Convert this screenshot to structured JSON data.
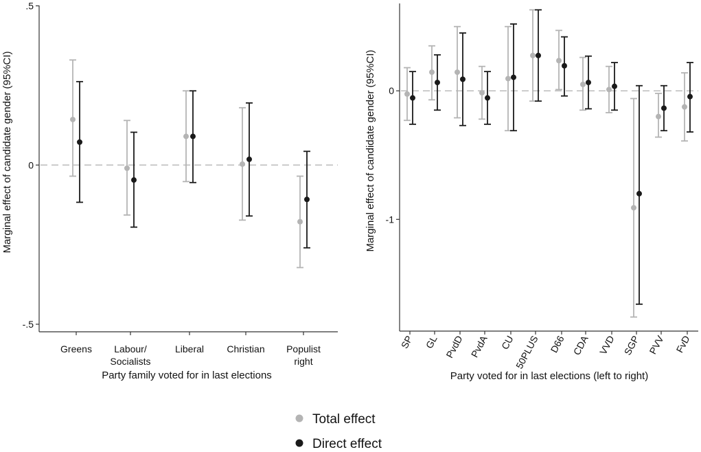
{
  "colors": {
    "total": "#b4b4b4",
    "direct": "#1a1a1a",
    "axis": "#333333",
    "zero_line": "#bbbbbb"
  },
  "legend": {
    "items": [
      {
        "key": "total",
        "label": "Total effect"
      },
      {
        "key": "direct",
        "label": "Direct effect"
      }
    ]
  },
  "chart_data": [
    {
      "type": "scatter",
      "panel": "left",
      "title": "",
      "ylabel": "Marginal effect of candidate gender (95%CI)",
      "xlabel": "Party family voted for in last elections",
      "ylim": [
        -0.5,
        0.5
      ],
      "yticks": [
        {
          "value": 0.5,
          "label": ".5"
        },
        {
          "value": 0,
          "label": "0"
        },
        {
          "value": -0.5,
          "label": "-.5"
        }
      ],
      "zero_line": true,
      "categories": [
        "Greens",
        "Labour/\nSocialists",
        "Liberal",
        "Christian",
        "Populist\nright"
      ],
      "series": [
        {
          "name": "Total effect",
          "key": "total",
          "values": [
            0.143,
            -0.01,
            0.09,
            0.003,
            -0.178
          ],
          "lower": [
            -0.035,
            -0.157,
            -0.052,
            -0.173,
            -0.322
          ],
          "upper": [
            0.33,
            0.14,
            0.233,
            0.18,
            -0.035
          ]
        },
        {
          "name": "Direct effect",
          "key": "direct",
          "values": [
            0.072,
            -0.047,
            0.09,
            0.018,
            -0.108
          ],
          "lower": [
            -0.117,
            -0.195,
            -0.055,
            -0.16,
            -0.26
          ],
          "upper": [
            0.262,
            0.103,
            0.233,
            0.195,
            0.043
          ]
        }
      ]
    },
    {
      "type": "scatter",
      "panel": "right",
      "title": "",
      "ylabel": "Marginal effect of candidate gender (95%CI)",
      "xlabel": "Party voted for in last elections (left to right)",
      "ylim": [
        -1.8,
        0.68
      ],
      "yticks": [
        {
          "value": 0,
          "label": "0"
        },
        {
          "value": -1,
          "label": "-1"
        }
      ],
      "zero_line": true,
      "categories": [
        "SP",
        "GL",
        "PvdD",
        "PvdA",
        "CU",
        "50PLUS",
        "D66",
        "CDA",
        "VVD",
        "SGP",
        "PVV",
        "FvD"
      ],
      "series": [
        {
          "name": "Total effect",
          "key": "total",
          "values": [
            -0.025,
            0.145,
            0.145,
            -0.015,
            0.095,
            0.275,
            0.235,
            0.05,
            0.01,
            -0.91,
            -0.2,
            -0.125
          ],
          "lower": [
            -0.23,
            -0.07,
            -0.21,
            -0.22,
            -0.31,
            -0.08,
            0.01,
            -0.15,
            -0.17,
            -1.76,
            -0.36,
            -0.39
          ],
          "upper": [
            0.18,
            0.35,
            0.5,
            0.19,
            0.5,
            0.63,
            0.47,
            0.26,
            0.19,
            -0.06,
            -0.02,
            0.14
          ]
        },
        {
          "name": "Direct effect",
          "key": "direct",
          "values": [
            -0.055,
            0.065,
            0.09,
            -0.055,
            0.105,
            0.275,
            0.195,
            0.065,
            0.035,
            -0.8,
            -0.135,
            -0.045
          ],
          "lower": [
            -0.26,
            -0.15,
            -0.27,
            -0.26,
            -0.31,
            -0.08,
            -0.04,
            -0.14,
            -0.15,
            -1.66,
            -0.31,
            -0.32
          ],
          "upper": [
            0.15,
            0.28,
            0.45,
            0.15,
            0.52,
            0.63,
            0.42,
            0.27,
            0.22,
            0.04,
            0.04,
            0.22
          ]
        }
      ]
    }
  ]
}
